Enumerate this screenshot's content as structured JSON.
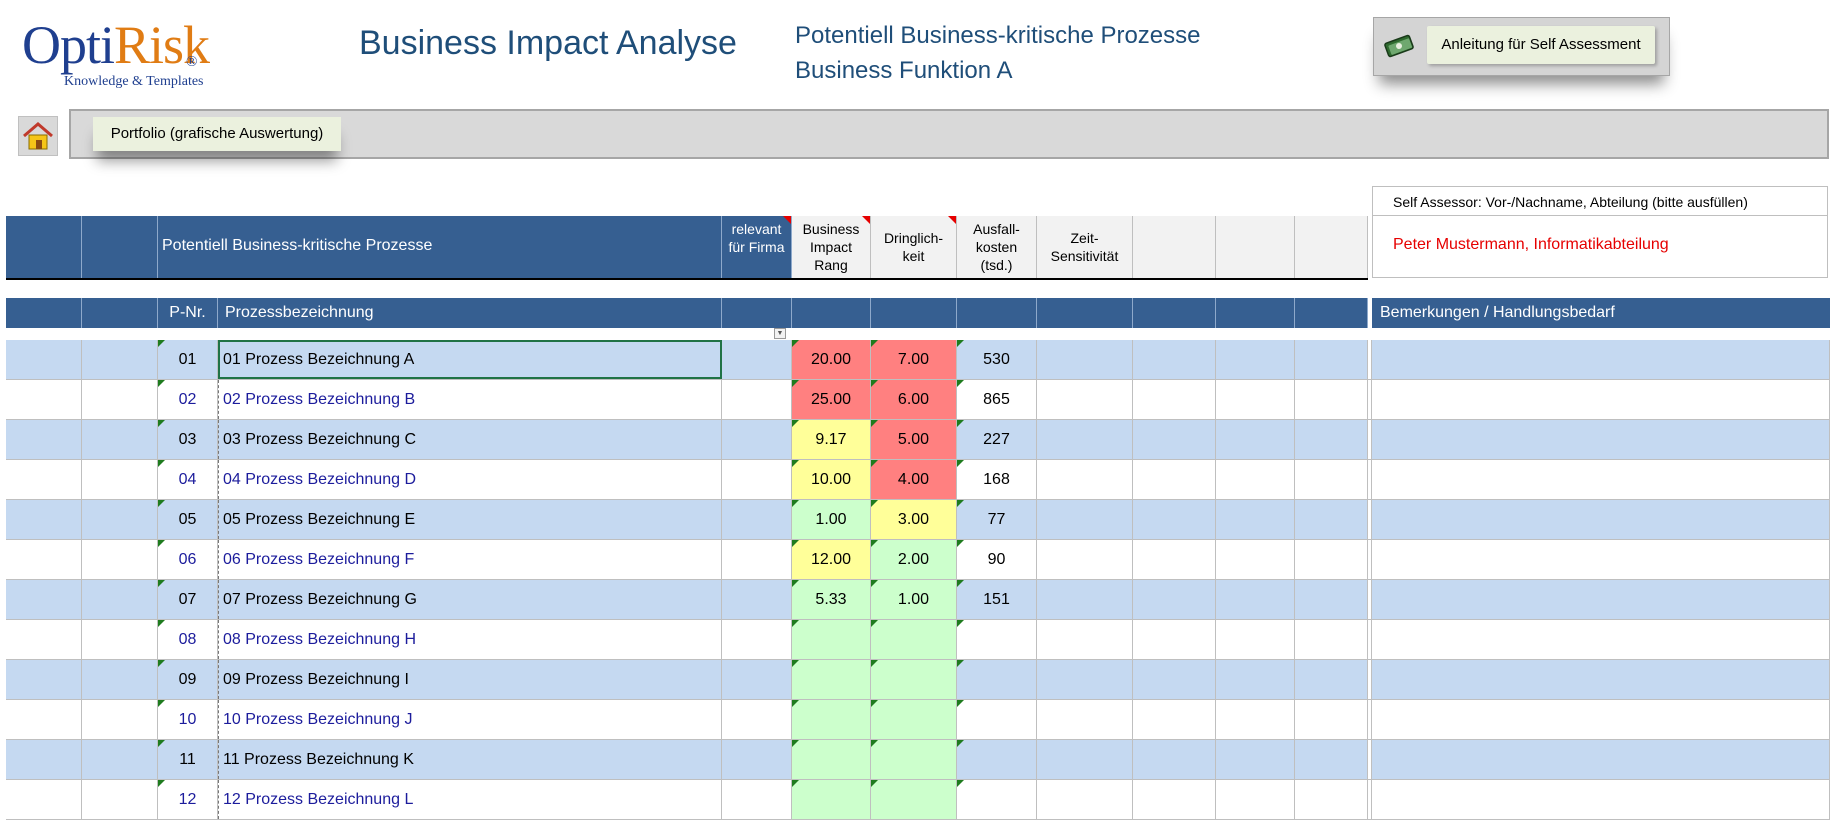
{
  "logo": {
    "word_a": "Opti",
    "word_b": "Risk",
    "reg": "®",
    "tagline": "Knowledge & Templates"
  },
  "header": {
    "title": "Business Impact Analyse",
    "subtitle1": "Potentiell Business-kritische Prozesse",
    "subtitle2": "Business Funktion A",
    "guide_button": "Anleitung  für Self Assessment"
  },
  "toolbar": {
    "portfolio_button": "Portfolio (grafische Auswertung)"
  },
  "assessor": {
    "label": "Self Assessor: Vor-/Nachname, Abteilung (bitte ausfüllen)",
    "name": "Peter Mustermann, Informatikabteilung"
  },
  "columns": {
    "process_group": "Potentiell Business-kritische Prozesse",
    "relevant": "relevant für Firma",
    "bi_rank": "Business Impact Rang",
    "urgency": "Dringlich-keit",
    "loss_cost": "Ausfall-kosten (tsd.)",
    "time_sensitivity": "Zeit-Sensitivität",
    "pnr": "P-Nr.",
    "process_name": "Prozessbezeichnung",
    "remarks": "Bemerkungen / Handlungsbedarf"
  },
  "colors": {
    "header_blue": "#365f91",
    "row_blue": "#c5d9f1",
    "high": "#ff8080",
    "medium": "#ffff99",
    "low": "#ccffcc"
  },
  "rows": [
    {
      "nr": "01",
      "name": "01 Prozess Bezeichnung A",
      "bi": "20.00",
      "urg": "7.00",
      "cost": "530"
    },
    {
      "nr": "02",
      "name": "02 Prozess Bezeichnung B",
      "bi": "25.00",
      "urg": "6.00",
      "cost": "865"
    },
    {
      "nr": "03",
      "name": "03 Prozess Bezeichnung C",
      "bi": "9.17",
      "urg": "5.00",
      "cost": "227"
    },
    {
      "nr": "04",
      "name": "04 Prozess Bezeichnung D",
      "bi": "10.00",
      "urg": "4.00",
      "cost": "168"
    },
    {
      "nr": "05",
      "name": "05 Prozess Bezeichnung E",
      "bi": "1.00",
      "urg": "3.00",
      "cost": "77"
    },
    {
      "nr": "06",
      "name": "06 Prozess Bezeichnung F",
      "bi": "12.00",
      "urg": "2.00",
      "cost": "90"
    },
    {
      "nr": "07",
      "name": "07 Prozess Bezeichnung G",
      "bi": "5.33",
      "urg": "1.00",
      "cost": "151"
    },
    {
      "nr": "08",
      "name": "08 Prozess Bezeichnung H",
      "bi": "",
      "urg": "",
      "cost": ""
    },
    {
      "nr": "09",
      "name": "09 Prozess Bezeichnung I",
      "bi": "",
      "urg": "",
      "cost": ""
    },
    {
      "nr": "10",
      "name": "10 Prozess Bezeichnung J",
      "bi": "",
      "urg": "",
      "cost": ""
    },
    {
      "nr": "11",
      "name": "11 Prozess Bezeichnung K",
      "bi": "",
      "urg": "",
      "cost": ""
    },
    {
      "nr": "12",
      "name": "12 Prozess Bezeichnung L",
      "bi": "",
      "urg": "",
      "cost": ""
    }
  ]
}
